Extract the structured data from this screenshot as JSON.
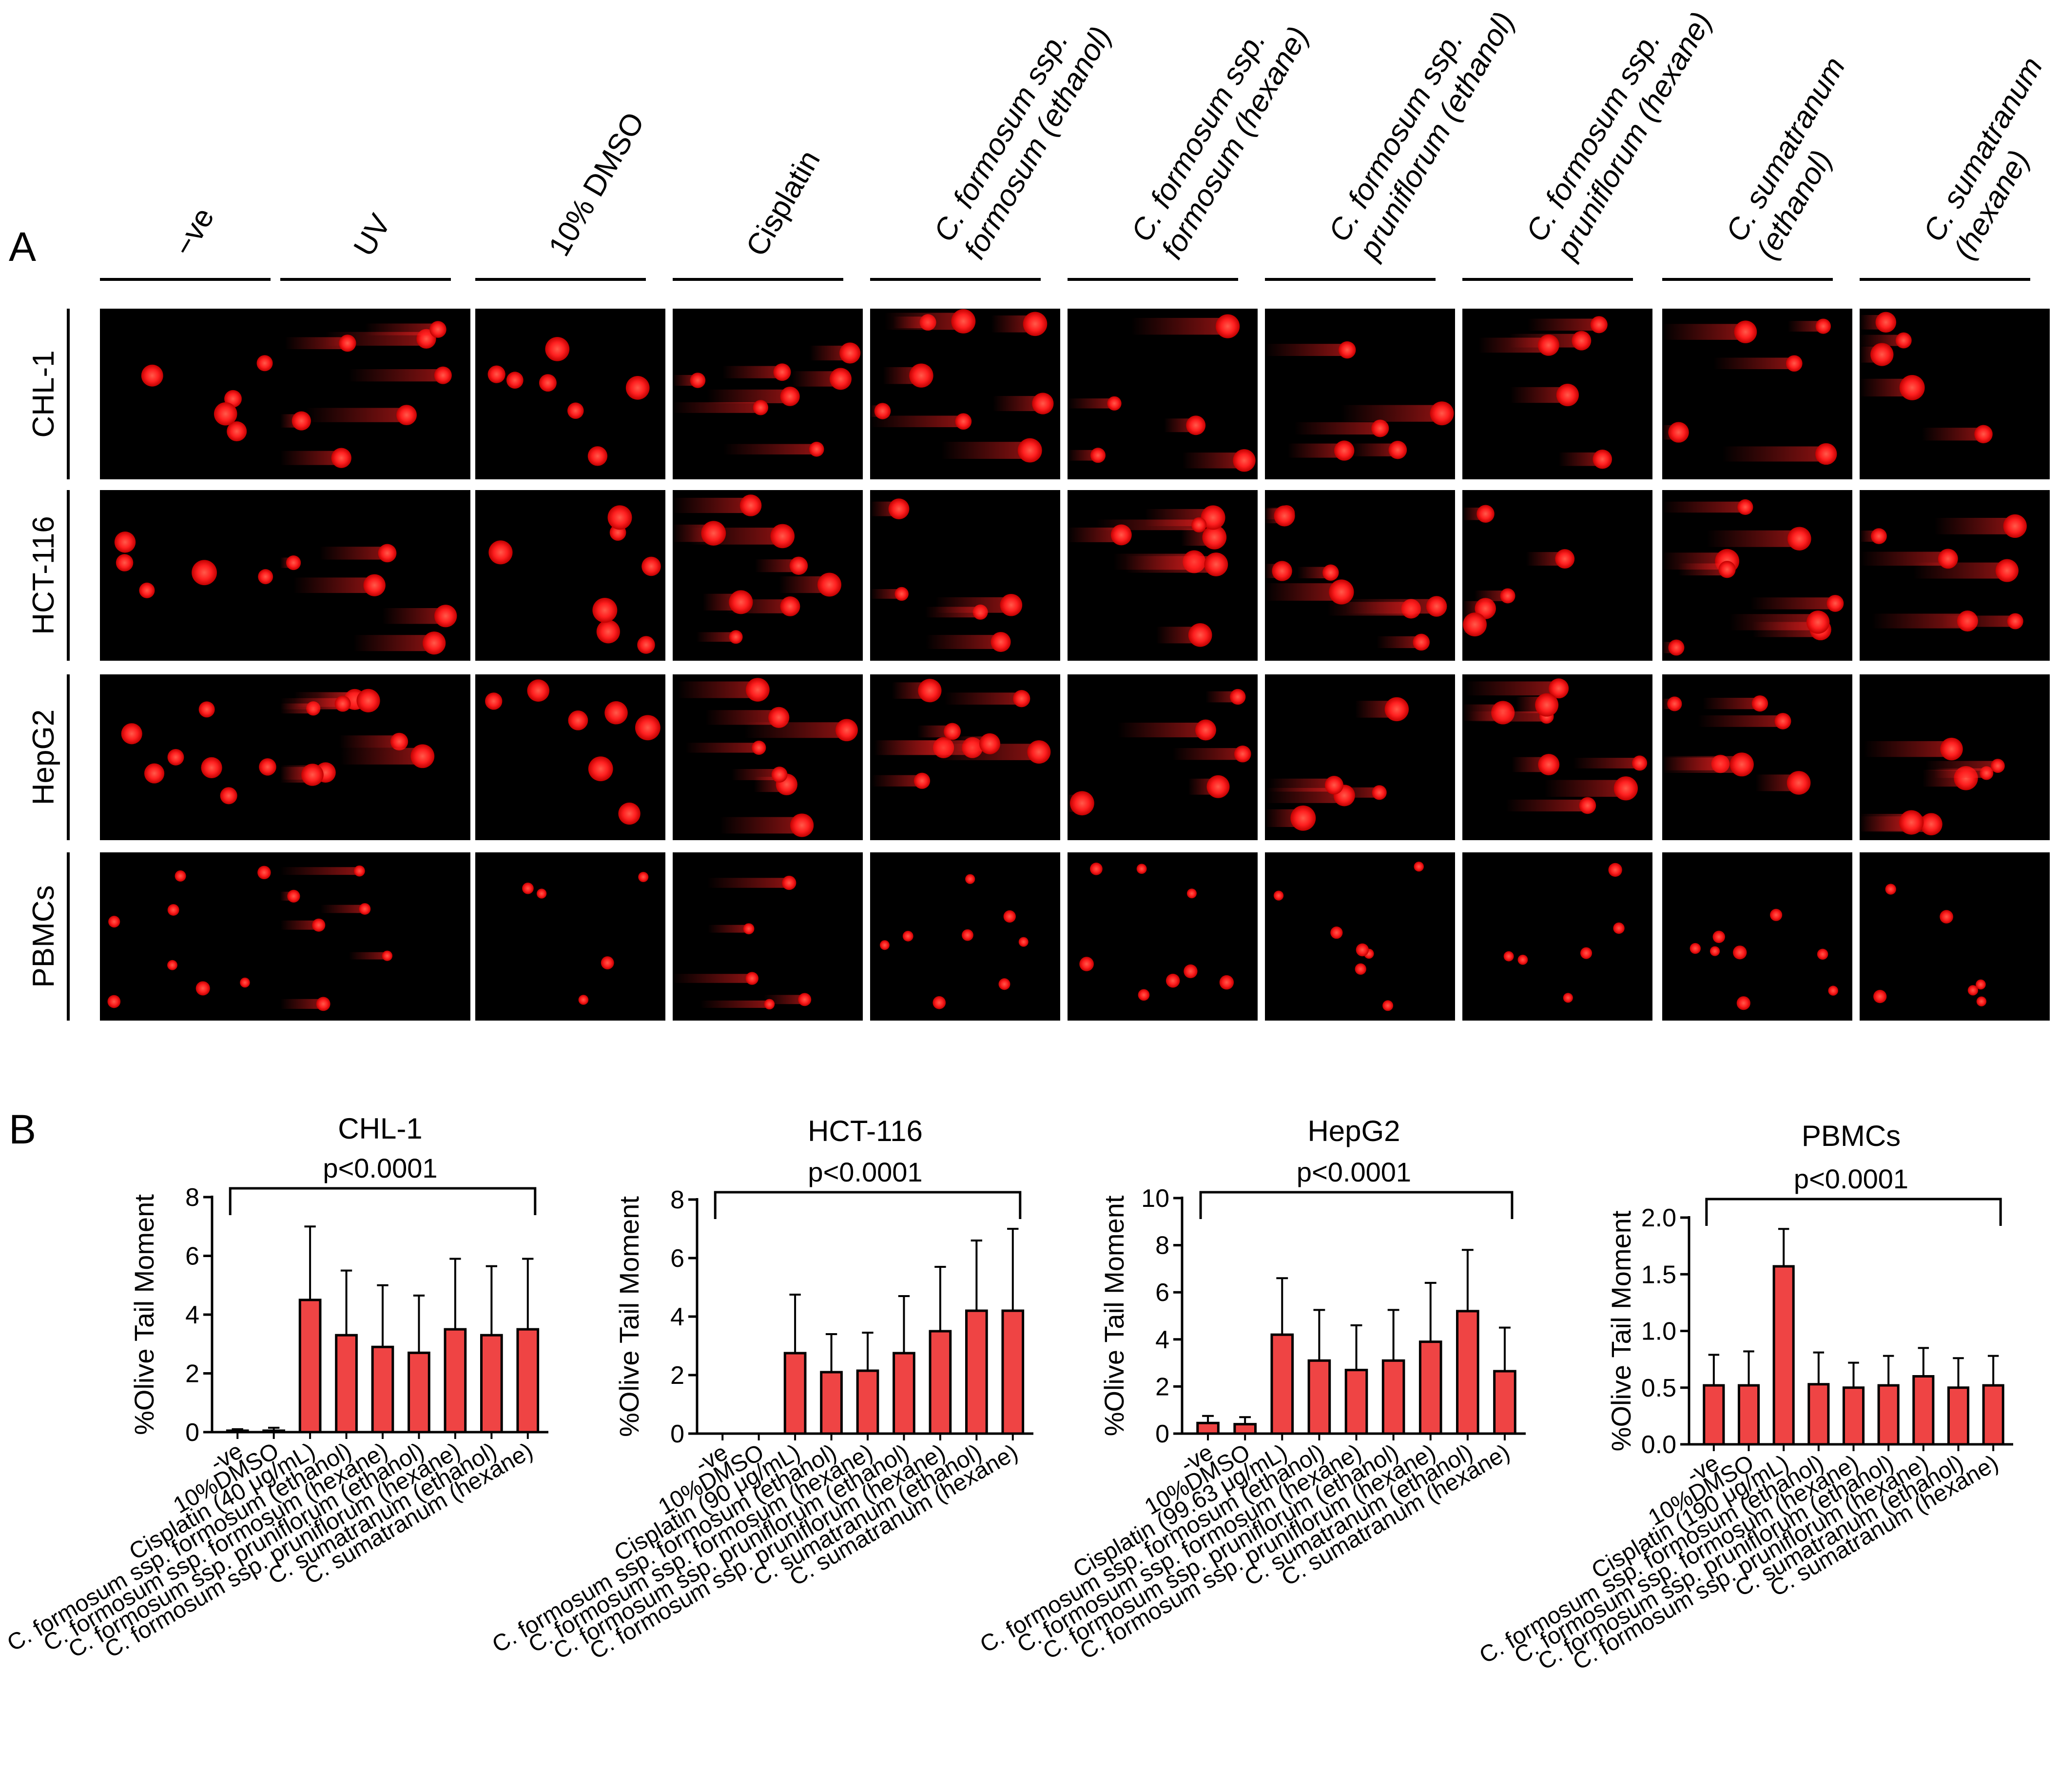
{
  "panels": {
    "a": "A",
    "b": "B"
  },
  "columns": [
    {
      "line1": "−ve",
      "line2": "",
      "italic": false
    },
    {
      "line1": "UV",
      "line2": "",
      "italic": false
    },
    {
      "line1": "10% DMSO",
      "line2": "",
      "italic": false
    },
    {
      "line1": "Cisplatin",
      "line2": "",
      "italic": false
    },
    {
      "line1": "C. formosum ssp.",
      "line2": "formosum (ethanol)",
      "italic": true
    },
    {
      "line1": "C. formosum ssp.",
      "line2": "formosum (hexane)",
      "italic": true
    },
    {
      "line1": "C. formosum ssp.",
      "line2": "pruniflorum (ethanol)",
      "italic": true
    },
    {
      "line1": "C. formosum ssp.",
      "line2": "pruniflorum (hexane)",
      "italic": true
    },
    {
      "line1": "C. sumatranum",
      "line2": "(ethanol)",
      "italic": true
    },
    {
      "line1": "C. sumatranum",
      "line2": "(hexane)",
      "italic": true
    }
  ],
  "rows": [
    "CHL-1",
    "HCT-116",
    "HepG2",
    "PBMCs"
  ],
  "colors": {
    "bar": "#ef4444",
    "comet": "#ff2020",
    "image_bg": "#000000"
  },
  "chart_data": [
    {
      "type": "bar",
      "title": "CHL-1",
      "annotation": "p<0.0001",
      "ylabel": "%Olive Tail Moment",
      "ylim": [
        0,
        8
      ],
      "yticks": [
        "0",
        "2",
        "4",
        "6",
        "8"
      ],
      "categories": [
        "-ve",
        "10%DMSO",
        "Cisplatin (40 μg/mL)",
        "C. formosum ssp. formosum (ethanol)",
        "C. formosum ssp. formosum (hexane)",
        "C. formosum ssp. pruniflorum (ethanol)",
        "C. formosum ssp. pruniflorum (hexane)",
        "C. sumatranum (ethanol)",
        "C. sumatranum (hexane)"
      ],
      "values": [
        0.05,
        0.05,
        4.5,
        3.3,
        2.9,
        2.7,
        3.5,
        3.3,
        3.5
      ],
      "errors": [
        0.05,
        0.1,
        2.5,
        2.2,
        2.1,
        1.95,
        2.4,
        2.35,
        2.4
      ]
    },
    {
      "type": "bar",
      "title": "HCT-116",
      "annotation": "p<0.0001",
      "ylabel": "%Olive Tail Moment",
      "ylim": [
        0,
        8
      ],
      "yticks": [
        "0",
        "2",
        "4",
        "6",
        "8"
      ],
      "categories": [
        "-ve",
        "10%DMSO",
        "Cisplatin (90 μg/mL)",
        "C. formosum ssp. formosum (ethanol)",
        "C. formosum ssp. formosum (hexane)",
        "C. formosum ssp. pruniflorum (ethanol)",
        "C. formosum ssp. pruniflorum (hexane)",
        "C. sumatranum (ethanol)",
        "C. sumatranum (hexane)"
      ],
      "values": [
        0,
        0,
        2.75,
        2.1,
        2.15,
        2.75,
        3.5,
        4.2,
        4.2
      ],
      "errors": [
        0,
        0,
        2.0,
        1.3,
        1.3,
        1.95,
        2.2,
        2.4,
        2.8
      ]
    },
    {
      "type": "bar",
      "title": "HepG2",
      "annotation": "p<0.0001",
      "ylabel": "%Olive Tail Moment",
      "ylim": [
        0,
        10
      ],
      "yticks": [
        "0",
        "2",
        "4",
        "6",
        "8",
        "10"
      ],
      "categories": [
        "-ve",
        "10%DMSO",
        "Cisplatin (99.63 μg/mL)",
        "C. formosum ssp. formosum (ethanol)",
        "C. formosum ssp. formosum (hexane)",
        "C. formosum ssp. pruniflorum (ethanol)",
        "C. formosum ssp. pruniflorum (hexane)",
        "C. sumatranum (ethanol)",
        "C. sumatranum (hexane)"
      ],
      "values": [
        0.45,
        0.4,
        4.2,
        3.1,
        2.7,
        3.1,
        3.9,
        5.2,
        2.65
      ],
      "errors": [
        0.3,
        0.3,
        2.4,
        2.15,
        1.9,
        2.15,
        2.5,
        2.6,
        1.85
      ]
    },
    {
      "type": "bar",
      "title": "PBMCs",
      "annotation": "p<0.0001",
      "ylabel": "%Olive Tail Moment",
      "ylim": [
        0,
        2.0
      ],
      "yticks": [
        "0.0",
        "0.5",
        "1.0",
        "1.5",
        "2.0"
      ],
      "categories": [
        "-ve",
        "10%DMSO",
        "Cisplatin (190 μg/mL)",
        "C. formosum ssp. formosum (ethanol)",
        "C. formosum ssp. formosum (hexane)",
        "C. formosum ssp. pruniflorum (ethanol)",
        "C. formosum ssp. pruniflorum (hexane)",
        "C. sumatranum (ethanol)",
        "C. sumatranum (hexane)"
      ],
      "values": [
        0.52,
        0.52,
        1.57,
        0.53,
        0.5,
        0.52,
        0.6,
        0.5,
        0.52
      ],
      "errors": [
        0.27,
        0.3,
        0.33,
        0.28,
        0.22,
        0.26,
        0.25,
        0.26,
        0.26
      ]
    }
  ]
}
